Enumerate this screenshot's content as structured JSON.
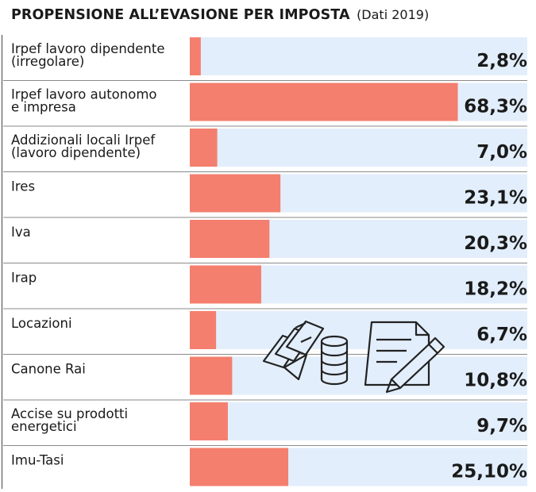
{
  "title": "PROPENSIONE ALL’EVASIONE PER IMPOSTA",
  "subtitle": "(Dati 2019)",
  "colors": {
    "bar": "#f47f6e",
    "track": "#e2eefb",
    "separator": "#8a8a8a",
    "icon_fill": "#e2eefb",
    "icon_stroke": "#222222"
  },
  "icons": [
    "banknotes-icon",
    "coins-icon",
    "document-pen-icon"
  ],
  "chart_data": {
    "type": "bar",
    "orientation": "horizontal",
    "categories": [
      [
        "Irpef lavoro dipendente",
        "(irregolare)"
      ],
      [
        "Irpef lavoro autonomo",
        "e impresa"
      ],
      [
        "Addizionali locali Irpef",
        "(lavoro dipendente)"
      ],
      [
        "Ires"
      ],
      [
        "Iva"
      ],
      [
        "Irap"
      ],
      [
        "Locazioni"
      ],
      [
        "Canone Rai"
      ],
      [
        "Accise su prodotti",
        "energetici"
      ],
      [
        "Imu-Tasi"
      ]
    ],
    "values": [
      2.8,
      68.3,
      7.0,
      23.1,
      20.3,
      18.2,
      6.7,
      10.8,
      9.7,
      25.1
    ],
    "labels": [
      "2,8%",
      "68,3%",
      "7,0%",
      "23,1%",
      "20,3%",
      "18,2%",
      "6,7%",
      "10,8%",
      "9,7%",
      "25,10%"
    ],
    "xlim": [
      0,
      86
    ],
    "grid": false,
    "legend": "none"
  }
}
